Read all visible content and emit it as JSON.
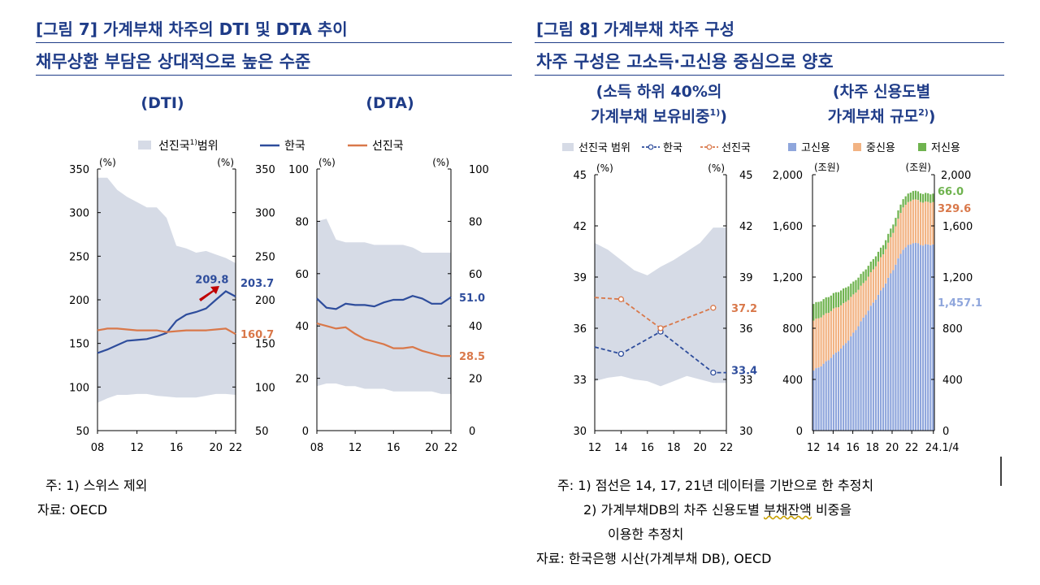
{
  "header": {
    "fig7_title": "[그림 7] 가계부채 차주의 DTI 및 DTA 추이",
    "fig7_sub": "채무상환 부담은 상대적으로 높은 수준",
    "fig8_title": "[그림 8] 가계부채 차주 구성",
    "fig8_sub": "차주 구성은 고소득·고신용 중심으로 양호"
  },
  "panels": {
    "dti_title": "(DTI)",
    "dta_title": "(DTA)",
    "share_title_1": "(소득 하위 40%의",
    "share_title_2": "가계부채 보유비중",
    "share_title_sup": "1)",
    "share_title_3": ")",
    "size_title_1": "(차주 신용도별",
    "size_title_2": "가계부채 규모",
    "size_title_sup": "2)",
    "size_title_3": ")"
  },
  "legend7": {
    "range": "선진국",
    "range_sup": "1)",
    "range_tail": "범위",
    "korea": "한국",
    "adv": "선진국"
  },
  "legend8": {
    "range": "선진국 범위",
    "korea": "한국",
    "adv": "선진국",
    "high": "고신용",
    "mid": "중신용",
    "low": "저신용"
  },
  "colors": {
    "title": "#1f3c88",
    "band": "#d6dbe6",
    "korea": "#2e4d9c",
    "adv": "#d9784a",
    "high": "#8fa6dc",
    "mid": "#f2b383",
    "low": "#6fb34f"
  },
  "chart_data": [
    {
      "id": "dti",
      "type": "line",
      "title": "(DTI)",
      "ylabel": "(%)",
      "ylim": [
        50,
        350
      ],
      "x_ticks": [
        "08",
        "12",
        "16",
        "20",
        "22"
      ],
      "y_ticks": [
        "50",
        "100",
        "150",
        "200",
        "250",
        "300",
        "350"
      ],
      "x": [
        2008,
        2009,
        2010,
        2011,
        2012,
        2013,
        2014,
        2015,
        2016,
        2017,
        2018,
        2019,
        2020,
        2021,
        2022
      ],
      "band_upper": [
        340,
        340,
        326,
        318,
        312,
        306,
        306,
        294,
        262,
        259,
        254,
        256,
        252,
        248,
        242
      ],
      "band_lower": [
        82,
        87,
        91,
        91,
        92,
        92,
        90,
        89,
        88,
        88,
        88,
        90,
        92,
        92,
        91
      ],
      "series": [
        {
          "name": "한국",
          "values": [
            139,
            143,
            148,
            153,
            154,
            155,
            158,
            162,
            176,
            183,
            186,
            190,
            200,
            209.8,
            203.7
          ]
        },
        {
          "name": "선진국",
          "values": [
            165,
            167,
            167,
            166,
            165,
            165,
            165,
            163,
            164,
            165,
            165,
            165,
            166,
            167,
            160.7
          ]
        }
      ],
      "labels": {
        "peak": "209.8",
        "korea_end": "203.7",
        "adv_end": "160.7"
      }
    },
    {
      "id": "dta",
      "type": "line",
      "title": "(DTA)",
      "ylabel": "(%)",
      "ylim": [
        0,
        100
      ],
      "x_ticks": [
        "08",
        "12",
        "16",
        "20",
        "22"
      ],
      "y_ticks": [
        "0",
        "20",
        "40",
        "60",
        "80",
        "100"
      ],
      "x": [
        2008,
        2009,
        2010,
        2011,
        2012,
        2013,
        2014,
        2015,
        2016,
        2017,
        2018,
        2019,
        2020,
        2021,
        2022
      ],
      "band_upper": [
        80,
        81,
        73,
        72,
        72,
        72,
        71,
        71,
        71,
        71,
        70,
        68,
        68,
        68,
        68
      ],
      "band_lower": [
        17,
        18,
        18,
        17,
        17,
        16,
        16,
        16,
        15,
        15,
        15,
        15,
        15,
        14,
        14
      ],
      "series": [
        {
          "name": "한국",
          "values": [
            50.5,
            47,
            46.5,
            48.5,
            48,
            48,
            47.5,
            49,
            50,
            50,
            51.5,
            50.5,
            48.5,
            48.5,
            51.0
          ]
        },
        {
          "name": "선진국",
          "values": [
            41,
            40,
            39,
            39.5,
            37,
            35,
            34,
            33,
            31.5,
            31.5,
            32,
            30.5,
            29.5,
            28.5,
            28.5
          ]
        }
      ],
      "labels": {
        "korea_end": "51.0",
        "adv_end": "28.5"
      }
    },
    {
      "id": "low_income_share",
      "type": "line",
      "ylabel": "(%)",
      "ylim": [
        30,
        45
      ],
      "x_ticks": [
        "12",
        "14",
        "16",
        "18",
        "20",
        "22"
      ],
      "y_ticks": [
        "30",
        "33",
        "36",
        "39",
        "42",
        "45"
      ],
      "x": [
        2012,
        2013,
        2014,
        2015,
        2016,
        2017,
        2018,
        2019,
        2020,
        2021,
        2022
      ],
      "band_upper": [
        41,
        40.6,
        40,
        39.4,
        39.1,
        39.6,
        40,
        40.5,
        41,
        41.9,
        41.9
      ],
      "band_lower": [
        32.9,
        33.1,
        33.2,
        33,
        32.9,
        32.6,
        32.9,
        33.2,
        33,
        32.8,
        32.8
      ],
      "series": [
        {
          "name": "한국",
          "x": [
            2012,
            2014,
            2017,
            2021,
            2022
          ],
          "values": [
            34.9,
            34.5,
            35.8,
            33.4,
            33.4
          ],
          "markers": [
            2014,
            2017,
            2021
          ]
        },
        {
          "name": "선진국",
          "x": [
            2012,
            2014,
            2017,
            2021
          ],
          "values": [
            37.8,
            37.7,
            36.0,
            37.2
          ],
          "markers": [
            2014,
            2017,
            2021
          ]
        }
      ],
      "labels": {
        "korea_end": "33.4",
        "adv_end": "37.2"
      }
    },
    {
      "id": "credit_size",
      "type": "bar",
      "stacked": true,
      "ylabel": "(조원)",
      "ylim": [
        0,
        2000
      ],
      "x_ticks": [
        "12",
        "14",
        "16",
        "18",
        "20",
        "22",
        "24.1/4"
      ],
      "y_ticks": [
        "0",
        "400",
        "800",
        "1,200",
        "1,600",
        "2,000"
      ],
      "anchor_x": [
        2012,
        2013,
        2014,
        2015,
        2016,
        2017,
        2018,
        2019,
        2020,
        2021,
        2022,
        2023,
        2024.2
      ],
      "series": [
        {
          "name": "고신용",
          "anchor_values": [
            470,
            520,
            590,
            660,
            760,
            880,
            1000,
            1120,
            1260,
            1420,
            1470,
            1450,
            1457.1
          ]
        },
        {
          "name": "중신용",
          "anchor_values": [
            390,
            380,
            360,
            330,
            300,
            270,
            260,
            260,
            290,
            330,
            340,
            335,
            329.6
          ]
        },
        {
          "name": "저신용",
          "anchor_values": [
            130,
            125,
            120,
            115,
            100,
            90,
            80,
            72,
            66,
            65,
            68,
            67,
            66.0
          ]
        }
      ],
      "labels": {
        "low_end": "66.0",
        "mid_end": "329.6",
        "high_end": "1,457.1"
      }
    }
  ],
  "notes": {
    "fig7_note": "주: 1) 스위스 제외",
    "fig7_src": "자료: OECD",
    "fig8_note1": "주: 1) 점선은 14, 17, 21년 데이터를 기반으로 한 추정치",
    "fig8_note2a": "2) 가계부채DB의 차주 신용도별 ",
    "fig8_note2b": "부채잔액",
    "fig8_note2c": " 비중을",
    "fig8_note2d": "이용한 추정치",
    "fig8_src": "자료: 한국은행 시산(가계부채 DB), OECD"
  }
}
